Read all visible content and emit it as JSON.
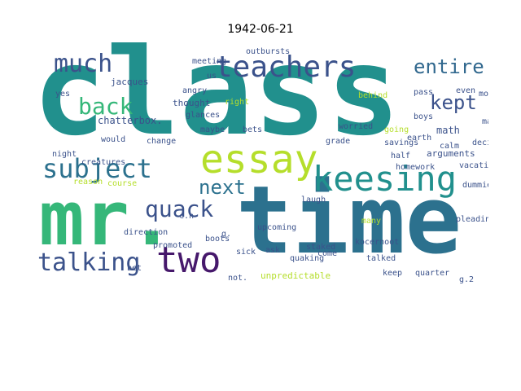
{
  "title": "1942-06-21",
  "palette": {
    "dark_purple": "#46186b",
    "blue": "#3b528b",
    "slate": "#2c718e",
    "teal": "#21908d",
    "green": "#35b779",
    "lime": "#90d743",
    "yellow": "#d8e219"
  },
  "words": [
    {
      "text": "class",
      "color": "#21908d"
    },
    {
      "text": "time",
      "color": "#2c718e"
    },
    {
      "text": "mr.",
      "color": "#35b779"
    },
    {
      "text": "essay",
      "color": "#b5de2b"
    },
    {
      "text": "keesing",
      "color": "#21908d"
    },
    {
      "text": "teachers",
      "color": "#3b528b"
    },
    {
      "text": "much",
      "color": "#3b528b"
    },
    {
      "text": "two",
      "color": "#46186b"
    },
    {
      "text": "talking",
      "color": "#3b528b"
    },
    {
      "text": "quack",
      "color": "#3b528b"
    },
    {
      "text": "subject",
      "color": "#2c718e"
    },
    {
      "text": "back",
      "color": "#35b779"
    },
    {
      "text": "entire",
      "color": "#31688e"
    },
    {
      "text": "kept",
      "color": "#3b528b"
    },
    {
      "text": "next",
      "color": "#2c718e"
    },
    {
      "text": "chatterbox.",
      "color": "#3b528b"
    },
    {
      "text": "thought",
      "color": "#3b528b"
    },
    {
      "text": "jacques",
      "color": "#3b528b"
    },
    {
      "text": "meeting",
      "color": "#3b528b"
    },
    {
      "text": "outbursts",
      "color": "#3b528b"
    },
    {
      "text": "math",
      "color": "#3b528b"
    },
    {
      "text": "arguments",
      "color": "#3b528b"
    },
    {
      "text": "homework",
      "color": "#3b528b"
    },
    {
      "text": "unpredictable",
      "color": "#b5de2b"
    },
    {
      "text": "creatures",
      "color": "#3b528b"
    },
    {
      "text": "promoted",
      "color": "#3b528b"
    },
    {
      "text": "vacation",
      "color": "#3b528b"
    },
    {
      "text": "kocernoot",
      "color": "#3b528b"
    },
    {
      "text": "dummies",
      "color": "#3b528b"
    },
    {
      "text": "upcoming",
      "color": "#3b528b"
    },
    {
      "text": "direction",
      "color": "#3b528b"
    },
    {
      "text": "glances",
      "color": "#3b528b"
    },
    {
      "text": "savings",
      "color": "#3b528b"
    },
    {
      "text": "would",
      "color": "#3b528b"
    },
    {
      "text": "change",
      "color": "#3b528b"
    },
    {
      "text": "maybe",
      "color": "#3b528b"
    },
    {
      "text": "bets",
      "color": "#3b528b"
    },
    {
      "text": "worried",
      "color": "#3b528b"
    },
    {
      "text": "grade",
      "color": "#3b528b"
    },
    {
      "text": "boys",
      "color": "#3b528b"
    },
    {
      "text": "making",
      "color": "#3b528b"
    },
    {
      "text": "decide",
      "color": "#3b528b"
    },
    {
      "text": "going",
      "color": "#b5de2b"
    },
    {
      "text": "pleading",
      "color": "#3b528b"
    },
    {
      "text": "quarter",
      "color": "#3b528b"
    },
    {
      "text": "keep",
      "color": "#3b528b"
    },
    {
      "text": "staked",
      "color": "#3b528b"
    },
    {
      "text": "quaking",
      "color": "#3b528b"
    },
    {
      "text": "laugh",
      "color": "#3b528b"
    },
    {
      "text": "boots",
      "color": "#3b528b"
    },
    {
      "text": "sick",
      "color": "#3b528b"
    },
    {
      "text": "come",
      "color": "#3b528b"
    },
    {
      "text": "talked",
      "color": "#3b528b"
    },
    {
      "text": "many",
      "color": "#b5de2b"
    },
    {
      "text": "course",
      "color": "#b5de2b"
    },
    {
      "text": "reason",
      "color": "#b5de2b"
    },
    {
      "text": "behind",
      "color": "#b5de2b"
    },
    {
      "text": "pass",
      "color": "#3b528b"
    },
    {
      "text": "even",
      "color": "#3b528b"
    },
    {
      "text": "morning",
      "color": "#3b528b"
    },
    {
      "text": "calm",
      "color": "#3b528b"
    },
    {
      "text": "earth",
      "color": "#3b528b"
    },
    {
      "text": "half",
      "color": "#3b528b"
    },
    {
      "text": "night",
      "color": "#3b528b"
    },
    {
      "text": "angry",
      "color": "#3b528b"
    },
    {
      "text": "yes",
      "color": "#3b528b"
    },
    {
      "text": "right",
      "color": "#b5de2b"
    },
    {
      "text": "us",
      "color": "#3b528b"
    },
    {
      "text": "bet",
      "color": "#3b528b"
    },
    {
      "text": "ask",
      "color": "#3b528b"
    },
    {
      "text": "not.",
      "color": "#3b528b"
    },
    {
      "text": "g.2",
      "color": "#3b528b"
    },
    {
      "text": "c.n",
      "color": "#3b528b"
    },
    {
      "text": "g.",
      "color": "#3b528b"
    }
  ]
}
